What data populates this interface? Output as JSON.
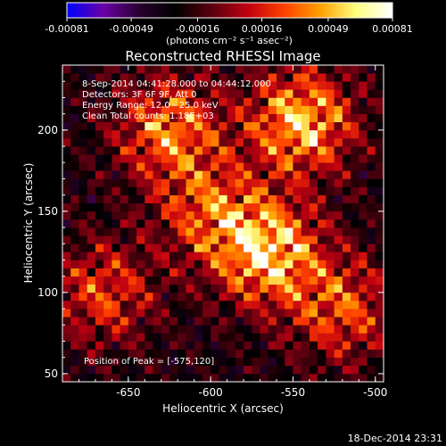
{
  "chart_data": {
    "type": "heatmap",
    "title": "Reconstructed RHESSI Image",
    "xlabel": "Heliocentric X (arcsec)",
    "ylabel": "Heliocentric Y (arcsec)",
    "xlim": [
      -690,
      -495
    ],
    "ylim": [
      45,
      240
    ],
    "x_ticks": [
      {
        "value": -650,
        "label": "-650"
      },
      {
        "value": -600,
        "label": "-600"
      },
      {
        "value": -550,
        "label": "-550"
      },
      {
        "value": -500,
        "label": "-500"
      }
    ],
    "y_ticks": [
      {
        "value": 50,
        "label": "50"
      },
      {
        "value": 100,
        "label": "100"
      },
      {
        "value": 150,
        "label": "150"
      },
      {
        "value": 200,
        "label": "200"
      }
    ],
    "colorbar": {
      "range": [
        -0.00081,
        0.00081
      ],
      "ticks": [
        {
          "value": -0.00081,
          "label": "-0.00081"
        },
        {
          "value": -0.00049,
          "label": "-0.00049"
        },
        {
          "value": -0.00016,
          "label": "-0.00016"
        },
        {
          "value": 0.00016,
          "label": "0.00016"
        },
        {
          "value": 0.00049,
          "label": "0.00049"
        },
        {
          "value": 0.00081,
          "label": "0.00081"
        }
      ],
      "unit_label": "(photons cm⁻² s⁻¹ asec⁻²)",
      "colormap": [
        "#0000ff",
        "#6a00a8",
        "#2a0030",
        "#000000",
        "#5a0010",
        "#c00010",
        "#ff4000",
        "#ffa000",
        "#ffff80",
        "#ffffff"
      ]
    },
    "annotations": [
      "8-Sep-2014 04:41:28.000 to 04:44:12.000",
      "Detectors: 3F 6F 9F, Att 0",
      "Energy Range: 12.0 - 25.0 keV",
      "Clean    Total counts: 1.18E+03"
    ],
    "peak_label": "Position of Peak = [-575,120]",
    "peak_position": [
      -575,
      120
    ],
    "bright_regions": [
      {
        "x": -565,
        "y": 125,
        "relative_intensity": 1.0
      },
      {
        "x": -545,
        "y": 205,
        "relative_intensity": 0.95
      },
      {
        "x": -625,
        "y": 200,
        "relative_intensity": 0.75
      },
      {
        "x": -600,
        "y": 150,
        "relative_intensity": 0.6
      },
      {
        "x": -665,
        "y": 100,
        "relative_intensity": 0.55
      },
      {
        "x": -520,
        "y": 90,
        "relative_intensity": 0.6
      }
    ],
    "grid": false
  },
  "footer": {
    "timestamp": "18-Dec-2014 23:31"
  },
  "colors": {
    "background": "#000000",
    "text": "#ffffff"
  }
}
